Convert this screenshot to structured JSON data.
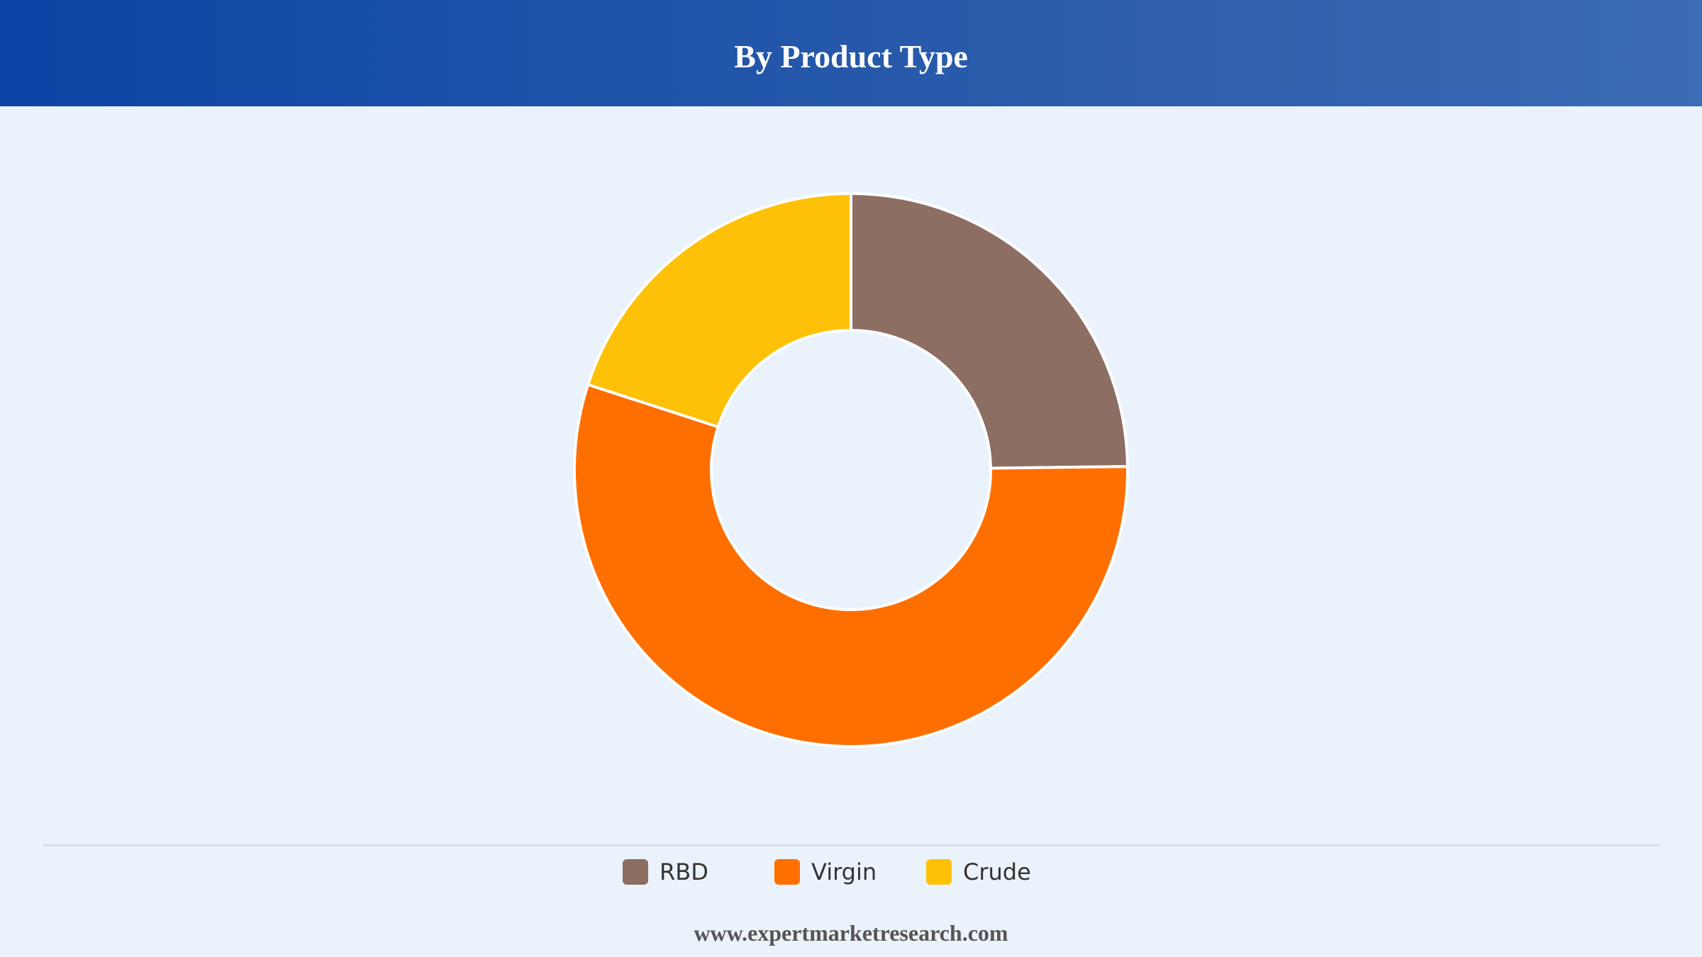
{
  "header": {
    "title": "By Product Type"
  },
  "chart_data": {
    "type": "pie",
    "donut": true,
    "categories": [
      "RBD",
      "Virgin",
      "Crude"
    ],
    "values": [
      24.8,
      55.2,
      20.0
    ],
    "unit": "%",
    "colors": [
      "#8d6e63",
      "#ff6f00",
      "#ffc107"
    ],
    "legend_position": "bottom",
    "start_angle": "top",
    "direction": "clockwise"
  },
  "legend": {
    "items": [
      {
        "label": "RBD",
        "color": "#8d6e63"
      },
      {
        "label": "Virgin",
        "color": "#ff6f00"
      },
      {
        "label": "Crude",
        "color": "#ffc107"
      }
    ]
  },
  "footer": {
    "source": "www.expertmarketresearch.com"
  },
  "colors": {
    "header_start": "#0b44a5",
    "header_end": "#3b6cb5",
    "background": "#eaf2fb"
  }
}
